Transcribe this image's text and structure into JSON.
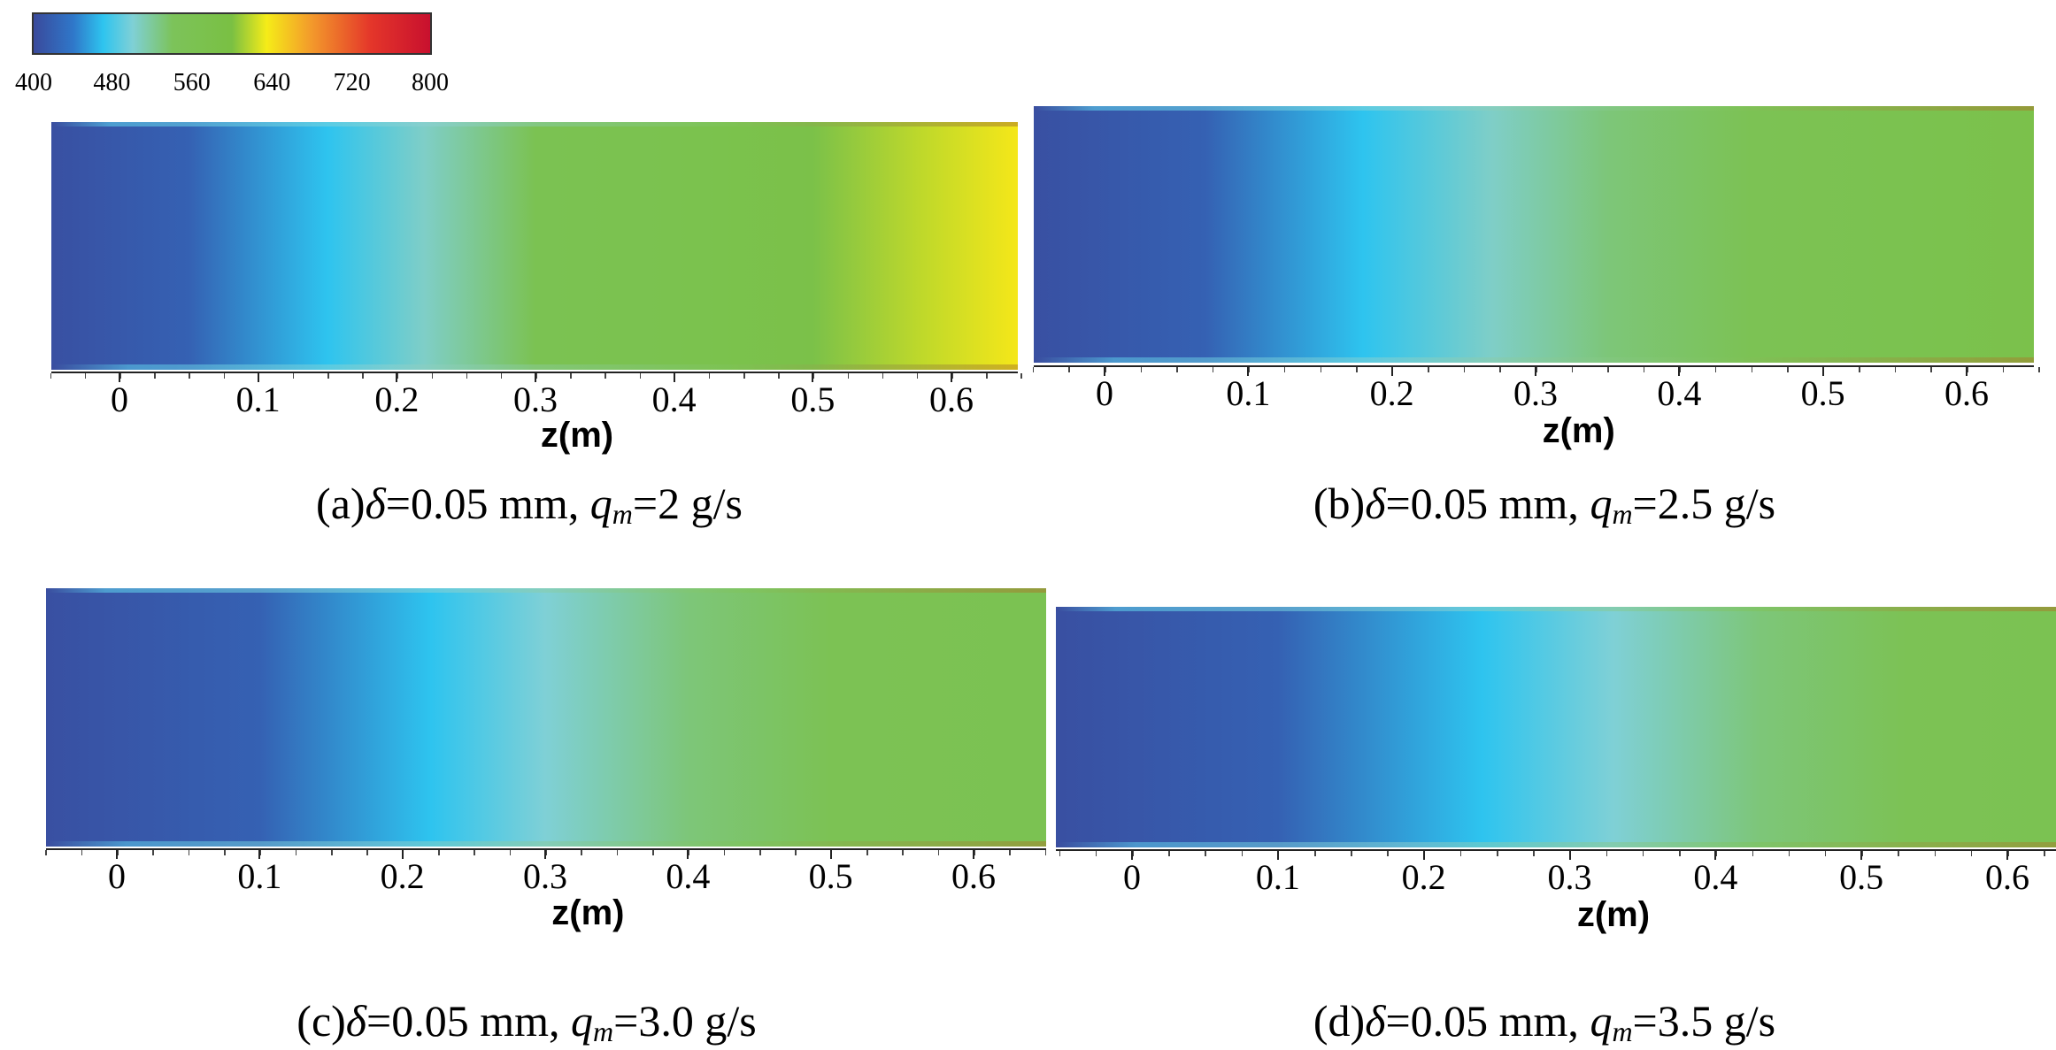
{
  "colorbar": {
    "ticks": [
      "400",
      "480",
      "560",
      "640",
      "720",
      "800"
    ],
    "min": 400,
    "max": 800,
    "stops": [
      {
        "v": 400,
        "c": "#3a4a9c"
      },
      {
        "v": 440,
        "c": "#2f77c9"
      },
      {
        "v": 470,
        "c": "#2ec4ef"
      },
      {
        "v": 500,
        "c": "#7fd0d6"
      },
      {
        "v": 540,
        "c": "#7cc35a"
      },
      {
        "v": 600,
        "c": "#7ac043"
      },
      {
        "v": 635,
        "c": "#f5ec18"
      },
      {
        "v": 680,
        "c": "#f39a2b"
      },
      {
        "v": 740,
        "c": "#e4362a"
      },
      {
        "v": 800,
        "c": "#c8102e"
      }
    ]
  },
  "chart_data": [
    {
      "type": "heatmap",
      "caption": {
        "prefix": "(a)",
        "delta": "δ",
        "delta_value": "=0.05 mm,",
        "q": "q",
        "q_sub": "m",
        "q_value": "=2 g/s"
      },
      "xlabel": "z(m)",
      "xticks": [
        "0",
        "0.1",
        "0.2",
        "0.3",
        "0.4",
        "0.5",
        "0.6"
      ],
      "xlim": [
        -0.05,
        0.65
      ],
      "temperature_profile": [
        {
          "z": -0.05,
          "T": 405
        },
        {
          "z": 0.05,
          "T": 420
        },
        {
          "z": 0.15,
          "T": 470
        },
        {
          "z": 0.22,
          "T": 505
        },
        {
          "z": 0.3,
          "T": 560
        },
        {
          "z": 0.4,
          "T": 570
        },
        {
          "z": 0.5,
          "T": 585
        },
        {
          "z": 0.58,
          "T": 620
        },
        {
          "z": 0.65,
          "T": 638
        }
      ]
    },
    {
      "type": "heatmap",
      "caption": {
        "prefix": "(b)",
        "delta": "δ",
        "delta_value": "=0.05 mm,",
        "q": "q",
        "q_sub": "m",
        "q_value": "=2.5 g/s"
      },
      "xlabel": "z(m)",
      "xticks": [
        "0",
        "0.1",
        "0.2",
        "0.3",
        "0.4",
        "0.5",
        "0.6"
      ],
      "xlim": [
        -0.05,
        0.65
      ],
      "temperature_profile": [
        {
          "z": -0.05,
          "T": 405
        },
        {
          "z": 0.07,
          "T": 420
        },
        {
          "z": 0.18,
          "T": 470
        },
        {
          "z": 0.27,
          "T": 505
        },
        {
          "z": 0.35,
          "T": 530
        },
        {
          "z": 0.45,
          "T": 555
        },
        {
          "z": 0.55,
          "T": 565
        },
        {
          "z": 0.65,
          "T": 580
        }
      ]
    },
    {
      "type": "heatmap",
      "caption": {
        "prefix": "(c)",
        "delta": "δ",
        "delta_value": "=0.05 mm,",
        "q": "q",
        "q_sub": "m",
        "q_value": "=3.0 g/s"
      },
      "xlabel": "z(m)",
      "xticks": [
        "0",
        "0.1",
        "0.2",
        "0.3",
        "0.4",
        "0.5",
        "0.6"
      ],
      "xlim": [
        -0.05,
        0.65
      ],
      "temperature_profile": [
        {
          "z": -0.05,
          "T": 405
        },
        {
          "z": 0.1,
          "T": 420
        },
        {
          "z": 0.22,
          "T": 470
        },
        {
          "z": 0.3,
          "T": 500
        },
        {
          "z": 0.4,
          "T": 530
        },
        {
          "z": 0.5,
          "T": 555
        },
        {
          "z": 0.65,
          "T": 560
        }
      ]
    },
    {
      "type": "heatmap",
      "caption": {
        "prefix": "(d)",
        "delta": "δ",
        "delta_value": "=0.05 mm,",
        "q": "q",
        "q_sub": "m",
        "q_value": "=3.5 g/s"
      },
      "xlabel": "z(m)",
      "xticks": [
        "0",
        "0.1",
        "0.2",
        "0.3",
        "0.4",
        "0.5",
        "0.6"
      ],
      "xlim": [
        -0.05,
        0.65
      ],
      "temperature_profile": [
        {
          "z": -0.05,
          "T": 405
        },
        {
          "z": 0.1,
          "T": 420
        },
        {
          "z": 0.24,
          "T": 470
        },
        {
          "z": 0.33,
          "T": 500
        },
        {
          "z": 0.43,
          "T": 530
        },
        {
          "z": 0.53,
          "T": 552
        },
        {
          "z": 0.65,
          "T": 560
        }
      ]
    }
  ]
}
